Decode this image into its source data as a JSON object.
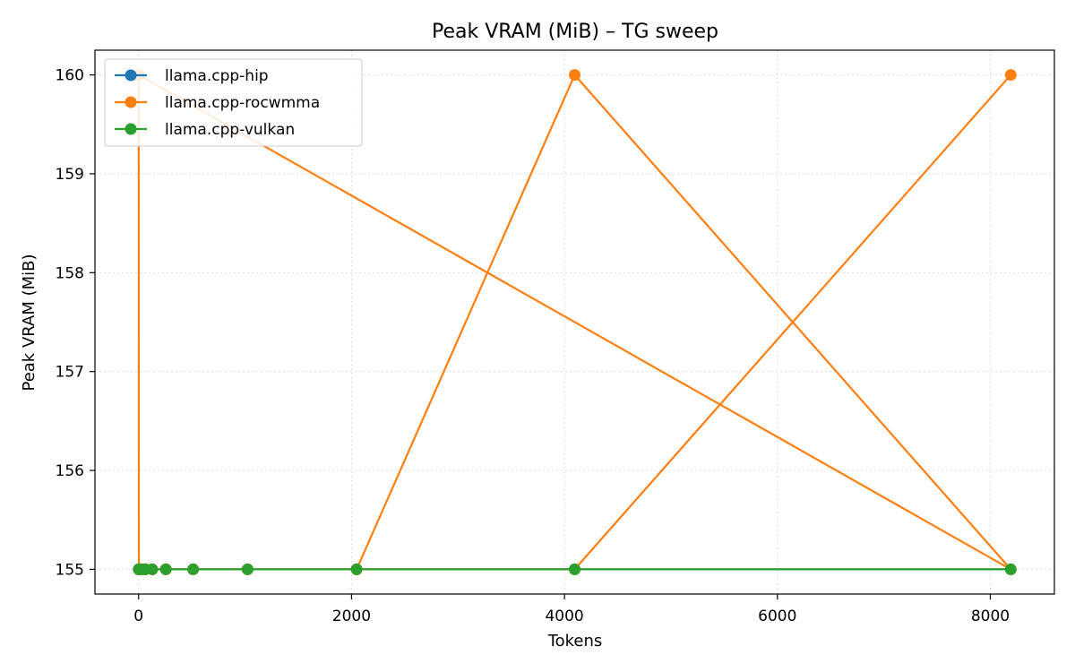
{
  "chart_data": {
    "type": "line",
    "title": "Peak VRAM (MiB) – TG sweep",
    "xlabel": "Tokens",
    "ylabel": "Peak VRAM (MiB)",
    "xlim": [
      -410,
      8602
    ],
    "ylim": [
      154.75,
      160.25
    ],
    "xticks": [
      0,
      2000,
      4000,
      6000,
      8000
    ],
    "yticks": [
      155,
      156,
      157,
      158,
      159,
      160
    ],
    "grid": true,
    "legend_position": "top-left",
    "series": [
      {
        "name": "llama.cpp-hip",
        "color": "#1f77b4",
        "x": [
          1,
          2,
          4,
          8,
          16,
          32,
          64,
          128,
          256,
          512,
          1024,
          2048,
          4096,
          8192
        ],
        "y": [
          155,
          155,
          155,
          155,
          155,
          155,
          155,
          155,
          155,
          155,
          155,
          155,
          155,
          155
        ]
      },
      {
        "name": "llama.cpp-rocwmma",
        "color": "#ff7f0e",
        "x": [
          1,
          2,
          4,
          8,
          16,
          32,
          64,
          128,
          256,
          512,
          1024,
          2048,
          4096,
          8192,
          1,
          2,
          4,
          8,
          16,
          32,
          64,
          128,
          256,
          512,
          1024,
          2048,
          4096,
          8192
        ],
        "y": [
          155,
          155,
          155,
          155,
          155,
          155,
          155,
          155,
          155,
          155,
          155,
          155,
          160,
          155,
          160,
          155,
          155,
          155,
          155,
          155,
          155,
          155,
          155,
          155,
          155,
          155,
          155,
          160
        ]
      },
      {
        "name": "llama.cpp-vulkan",
        "color": "#2ca02c",
        "x": [
          1,
          2,
          4,
          8,
          16,
          32,
          64,
          128,
          256,
          512,
          1024,
          2048,
          4096,
          8192
        ],
        "y": [
          155,
          155,
          155,
          155,
          155,
          155,
          155,
          155,
          155,
          155,
          155,
          155,
          155,
          155
        ]
      }
    ]
  }
}
